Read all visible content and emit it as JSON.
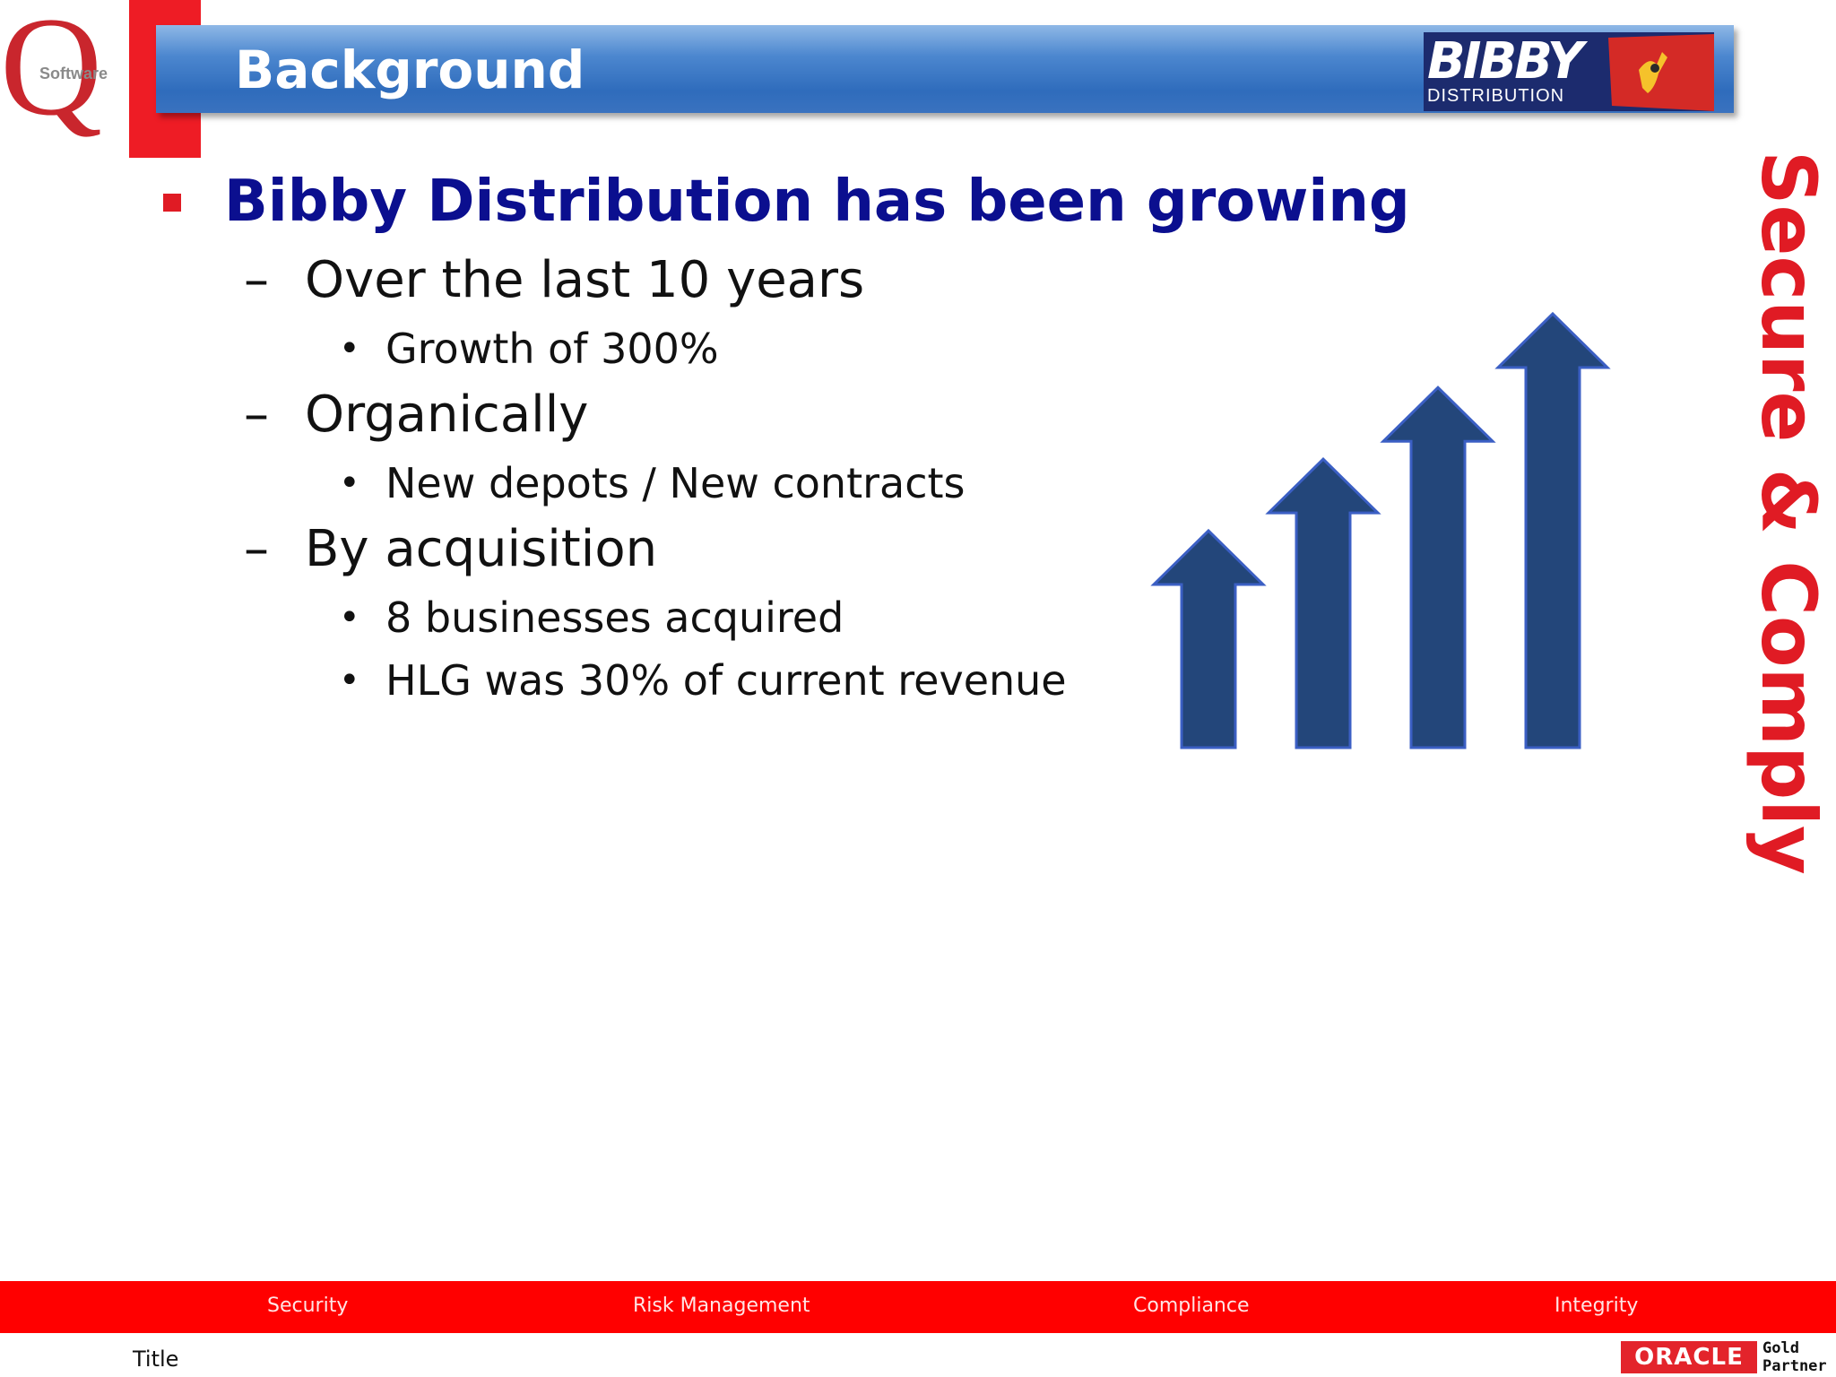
{
  "logo": {
    "letter": "Q",
    "word": "Software"
  },
  "header": {
    "title": "Background"
  },
  "bibby": {
    "name": "BIBBY",
    "sub": "DISTRIBUTION"
  },
  "content": {
    "heading": "Bibby Distribution has been growing",
    "points": [
      {
        "dash": "–",
        "text": "Over the last 10 years",
        "subs": [
          "Growth of 300%"
        ]
      },
      {
        "dash": "–",
        "text": "Organically",
        "subs": [
          "New depots / New contracts"
        ]
      },
      {
        "dash": "–",
        "text": "By acquisition",
        "subs": [
          "8 businesses acquired",
          "HLG was 30% of current revenue"
        ]
      }
    ],
    "bullet_char": "•"
  },
  "side_text": "Secure & Comply",
  "footer": {
    "items": [
      "Security",
      "Risk Management",
      "Compliance",
      "Integrity"
    ],
    "title": "Title",
    "oracle": {
      "brand": "ORACLE",
      "line1": "Gold",
      "line2": "Partner"
    }
  },
  "colors": {
    "accent_red": "#ee1c25",
    "header_blue": "#2f6cbc",
    "heading_navy": "#0b0f8f",
    "arrow_fill": "#23467a",
    "arrow_stroke": "#3b5fc4"
  },
  "arrows": {
    "count": 4,
    "relative_heights": [
      1,
      1.33,
      1.66,
      2
    ]
  }
}
